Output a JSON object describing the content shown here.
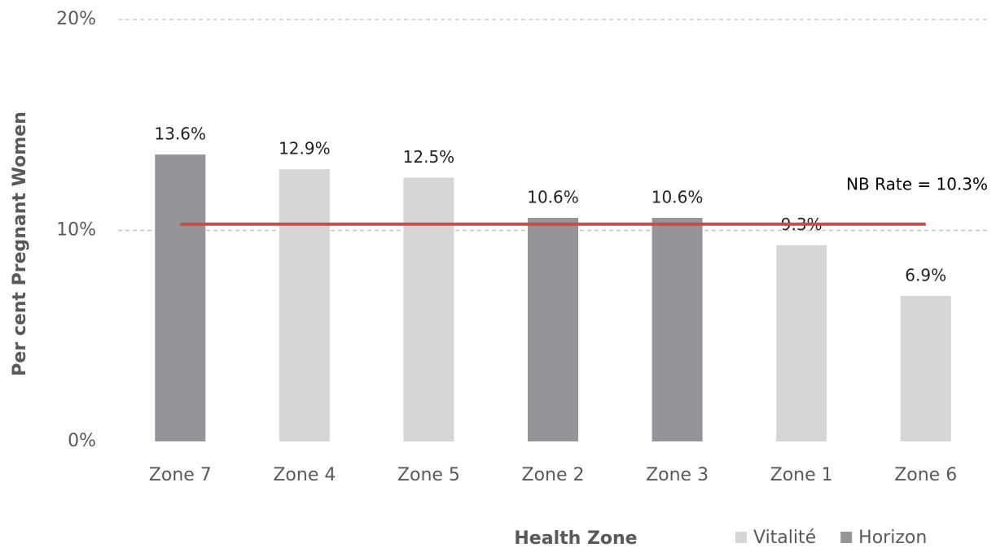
{
  "chart_data": {
    "type": "bar",
    "categories": [
      "Zone 7",
      "Zone 4",
      "Zone 5",
      "Zone 2",
      "Zone 3",
      "Zone 1",
      "Zone 6"
    ],
    "series": [
      {
        "name": "Vitalité",
        "color": "#d4d5d7",
        "values": [
          null,
          12.9,
          12.5,
          null,
          null,
          9.3,
          6.9
        ],
        "value_labels": [
          null,
          "12.9%",
          "12.5%",
          null,
          null,
          "9.3%",
          "6.9%"
        ]
      },
      {
        "name": "Horizon",
        "color": "#939598",
        "values": [
          13.6,
          null,
          null,
          10.6,
          10.6,
          null,
          null
        ],
        "value_labels": [
          "13.6%",
          null,
          null,
          "10.6%",
          "10.6%",
          null,
          null
        ]
      }
    ],
    "ylim": [
      0,
      20
    ],
    "yticks": [
      {
        "value": 0,
        "label": "0%"
      },
      {
        "value": 10,
        "label": "10%"
      },
      {
        "value": 20,
        "label": "20%"
      }
    ],
    "grid": true,
    "x_label": "Health Zone",
    "y_label": "Per cent Pregnant Women",
    "reference_line": {
      "value": 10.3,
      "label": "NB Rate = 10.3%",
      "color": "#c0504d"
    },
    "legend": "bottom-right"
  }
}
